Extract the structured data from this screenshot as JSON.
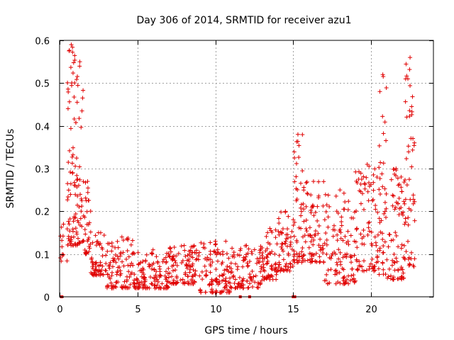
{
  "chart_data": {
    "type": "scatter",
    "title": "Day 306 of 2014, SRMTID for receiver azu1",
    "xlabel": "GPS time / hours",
    "ylabel": "SRMTID / TECUs",
    "xlim": [
      0,
      24
    ],
    "ylim": [
      0,
      0.6
    ],
    "xticks": [
      0,
      5,
      10,
      15,
      20
    ],
    "yticks": [
      0,
      0.1,
      0.2,
      0.3,
      0.4,
      0.5,
      0.6
    ],
    "grid": true,
    "marker": "+",
    "color": "#e00000",
    "series": [
      {
        "name": "SRMTID azu1",
        "segments": [
          {
            "t0": 0.0,
            "t1": 0.5,
            "min": 0.08,
            "max": 0.17,
            "count": 12
          },
          {
            "t0": 0.5,
            "t1": 1.0,
            "min": 0.12,
            "max": 0.59,
            "count": 60
          },
          {
            "t0": 1.0,
            "t1": 1.6,
            "min": 0.12,
            "max": 0.55,
            "count": 55
          },
          {
            "t0": 1.6,
            "t1": 2.0,
            "min": 0.1,
            "max": 0.27,
            "count": 30
          },
          {
            "t0": 2.0,
            "t1": 3.0,
            "min": 0.05,
            "max": 0.15,
            "count": 60
          },
          {
            "t0": 3.0,
            "t1": 5.0,
            "min": 0.02,
            "max": 0.14,
            "count": 110
          },
          {
            "t0": 5.0,
            "t1": 7.0,
            "min": 0.02,
            "max": 0.11,
            "count": 110
          },
          {
            "t0": 7.0,
            "t1": 9.0,
            "min": 0.03,
            "max": 0.12,
            "count": 110
          },
          {
            "t0": 9.0,
            "t1": 11.0,
            "min": 0.01,
            "max": 0.13,
            "count": 110
          },
          {
            "t0": 11.0,
            "t1": 13.0,
            "min": 0.02,
            "max": 0.12,
            "count": 100
          },
          {
            "t0": 13.0,
            "t1": 14.0,
            "min": 0.04,
            "max": 0.16,
            "count": 60
          },
          {
            "t0": 14.0,
            "t1": 15.0,
            "min": 0.06,
            "max": 0.2,
            "count": 60
          },
          {
            "t0": 15.0,
            "t1": 15.6,
            "min": 0.08,
            "max": 0.38,
            "count": 45
          },
          {
            "t0": 15.6,
            "t1": 17.0,
            "min": 0.08,
            "max": 0.27,
            "count": 80
          },
          {
            "t0": 17.0,
            "t1": 19.0,
            "min": 0.03,
            "max": 0.25,
            "count": 110
          },
          {
            "t0": 19.0,
            "t1": 20.5,
            "min": 0.06,
            "max": 0.31,
            "count": 90
          },
          {
            "t0": 20.5,
            "t1": 21.0,
            "min": 0.05,
            "max": 0.52,
            "count": 40
          },
          {
            "t0": 21.0,
            "t1": 22.2,
            "min": 0.04,
            "max": 0.3,
            "count": 80
          },
          {
            "t0": 22.2,
            "t1": 22.8,
            "min": 0.07,
            "max": 0.56,
            "count": 50
          }
        ],
        "zero_points": [
          0.12,
          0.15,
          11.6,
          12.2,
          15.0,
          15.1
        ]
      }
    ]
  }
}
